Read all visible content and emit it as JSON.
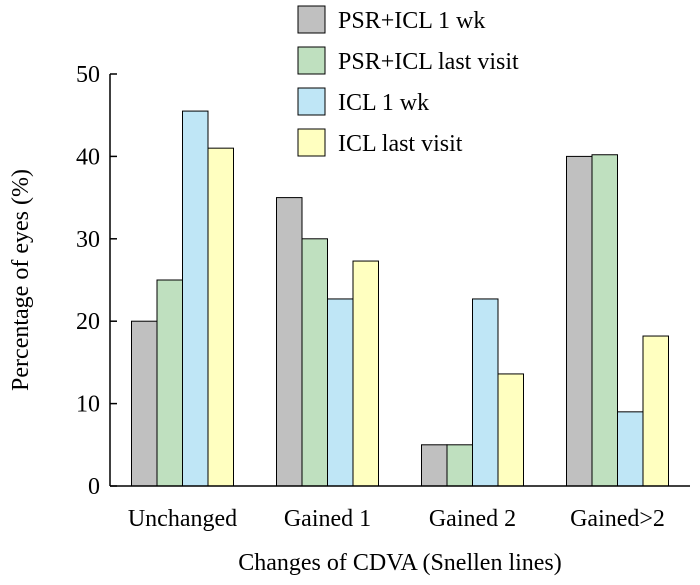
{
  "chart_data": {
    "type": "bar",
    "categories": [
      "Unchanged",
      "Gained 1",
      "Gained 2",
      "Gained>2"
    ],
    "series": [
      {
        "name": "PSR+ICL 1 wk",
        "color": "#c0c0c0",
        "values": [
          20,
          35,
          5,
          40
        ]
      },
      {
        "name": "PSR+ICL last visit",
        "color": "#bfe0bf",
        "values": [
          25,
          30,
          5,
          40.2
        ]
      },
      {
        "name": "ICL 1 wk",
        "color": "#bfe6f6",
        "values": [
          45.5,
          22.7,
          22.7,
          9
        ]
      },
      {
        "name": "ICL last visit",
        "color": "#ffffc0",
        "values": [
          41,
          27.3,
          13.6,
          18.2
        ]
      }
    ],
    "xlabel": "Changes of CDVA (Snellen lines)",
    "ylabel": "Percentage of eyes (%)",
    "ylim": [
      0,
      50
    ],
    "yticks": [
      0,
      10,
      20,
      30,
      40,
      50
    ],
    "legend_position": "top-right",
    "grid": false
  }
}
